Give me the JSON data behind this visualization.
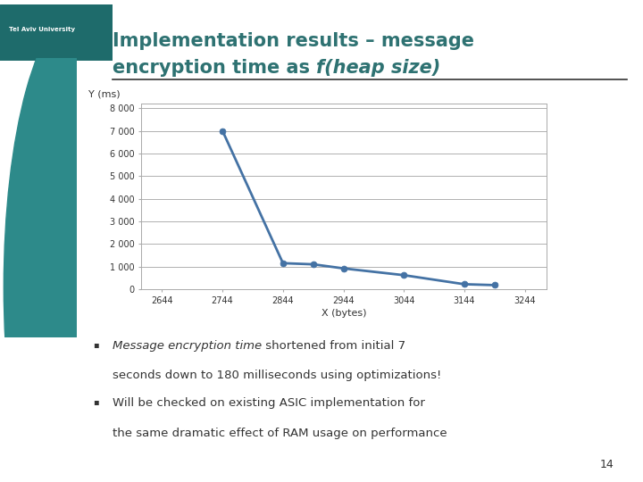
{
  "title_line1": "Implementation results – message",
  "title_line2_plain": "encryption time as ",
  "title_line2_italic": "f(heap size)",
  "slide_bg": "#ffffff",
  "title_color": "#2e7272",
  "chart_line_color": "#4472a4",
  "chart_bg": "#ffffff",
  "x_values": [
    2744,
    2844,
    2894,
    2944,
    3044,
    3144,
    3194
  ],
  "y_values": [
    7000,
    1150,
    1100,
    920,
    620,
    220,
    180
  ],
  "x_label": "X (bytes)",
  "y_label": "Y (ms)",
  "x_ticks": [
    2644,
    2744,
    2844,
    2944,
    3044,
    3144,
    3244
  ],
  "y_ticks": [
    0,
    1000,
    2000,
    3000,
    4000,
    5000,
    6000,
    7000,
    8000
  ],
  "ylim": [
    0,
    8200
  ],
  "xlim": [
    2610,
    3280
  ],
  "line_width": 2.0,
  "marker_size": 5,
  "grid_color": "#b0b0b0",
  "tick_fontsize": 7,
  "axis_label_fontsize": 8,
  "separator_color": "#333333",
  "logo_bg": "#1e6b6b",
  "logo_text": "Tel Aviv University",
  "teal_circle_color": "#2d8a8a",
  "bullet_symbol": "▪",
  "bullet1_italic": "Message encryption time",
  "bullet1_rest": " shortened from initial 7",
  "bullet1_line2": "seconds down to 180 milliseconds using optimizations!",
  "bullet2_line1": "Will be checked on existing ASIC implementation for",
  "bullet2_line2": "the same dramatic effect of RAM usage on performance",
  "slide_number": "14"
}
